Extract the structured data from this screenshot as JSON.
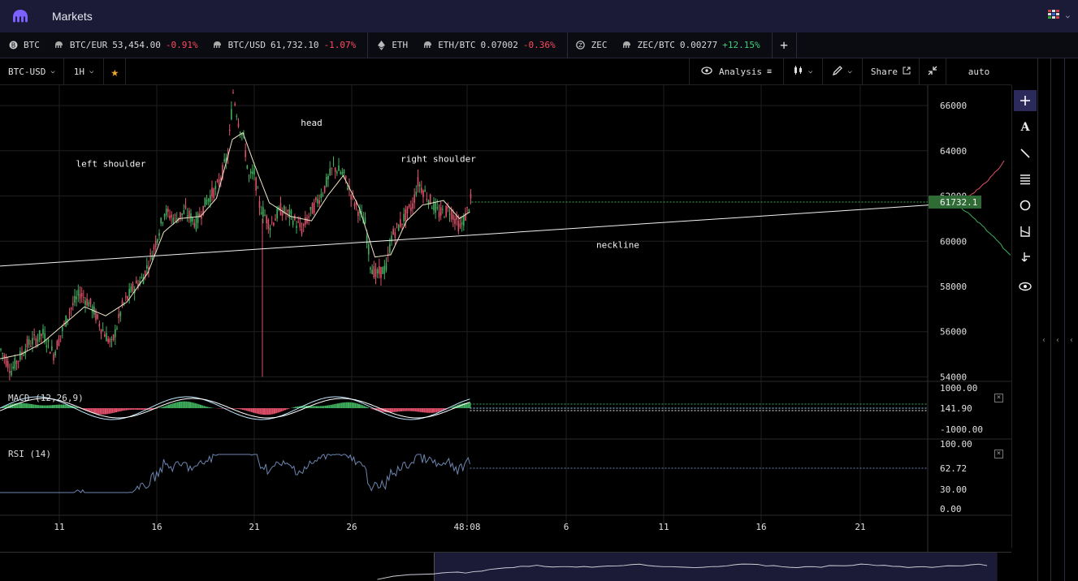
{
  "app": {
    "title": "Markets"
  },
  "tickers": [
    {
      "items": [
        {
          "icon": "bitcoin-icon",
          "symbol": "BTC",
          "price": "",
          "change": "",
          "dir": ""
        },
        {
          "icon": "kraken-icon",
          "symbol": "BTC/EUR",
          "price": "53,454.00",
          "change": "-0.91%",
          "dir": "neg"
        },
        {
          "icon": "kraken-icon",
          "symbol": "BTC/USD",
          "price": "61,732.10",
          "change": "-1.07%",
          "dir": "neg"
        }
      ]
    },
    {
      "items": [
        {
          "icon": "ethereum-icon",
          "symbol": "ETH",
          "price": "",
          "change": "",
          "dir": ""
        },
        {
          "icon": "kraken-icon",
          "symbol": "ETH/BTC",
          "price": "0.07002",
          "change": "-0.36%",
          "dir": "neg"
        }
      ]
    },
    {
      "items": [
        {
          "icon": "zcash-icon",
          "symbol": "ZEC",
          "price": "",
          "change": "",
          "dir": ""
        },
        {
          "icon": "kraken-icon",
          "symbol": "ZEC/BTC",
          "price": "0.00277",
          "change": "+12.15%",
          "dir": "pos"
        }
      ]
    }
  ],
  "toolbar": {
    "pair": "BTC-USD",
    "interval": "1H",
    "analysis_label": "Analysis",
    "share_label": "Share",
    "scale_mode": "auto"
  },
  "chart_data": [
    {
      "type": "candlestick",
      "title": "BTC-USD",
      "xlabel": "",
      "ylabel": "",
      "x_ticks": [
        "11",
        "16",
        "21",
        "26",
        "48:08",
        "6",
        "11",
        "16",
        "21"
      ],
      "y_ticks": [
        66000,
        64000,
        62000,
        60000,
        58000,
        56000,
        54000
      ],
      "ylim": [
        53800,
        66900
      ],
      "last_price": "61732.1",
      "price_path": [
        [
          0,
          55200
        ],
        [
          2,
          54300
        ],
        [
          5,
          55400
        ],
        [
          8,
          55900
        ],
        [
          10,
          55000
        ],
        [
          13,
          56900
        ],
        [
          15,
          57700
        ],
        [
          17,
          57200
        ],
        [
          19,
          56200
        ],
        [
          21,
          55400
        ],
        [
          23,
          57100
        ],
        [
          25,
          57900
        ],
        [
          27,
          58400
        ],
        [
          29,
          59700
        ],
        [
          31,
          61300
        ],
        [
          33,
          61000
        ],
        [
          35,
          61300
        ],
        [
          37,
          60800
        ],
        [
          39,
          61800
        ],
        [
          41,
          62400
        ],
        [
          43,
          63800
        ],
        [
          44,
          66600
        ],
        [
          45,
          65300
        ],
        [
          46,
          64500
        ],
        [
          47,
          62800
        ],
        [
          48,
          63000
        ],
        [
          49,
          61600
        ],
        [
          51,
          60700
        ],
        [
          53,
          61400
        ],
        [
          55,
          61100
        ],
        [
          57,
          60500
        ],
        [
          59,
          61400
        ],
        [
          61,
          62200
        ],
        [
          63,
          63300
        ],
        [
          65,
          62900
        ],
        [
          67,
          61700
        ],
        [
          69,
          60800
        ],
        [
          70,
          59000
        ],
        [
          71,
          58500
        ],
        [
          73,
          58800
        ],
        [
          74,
          60200
        ],
        [
          76,
          60900
        ],
        [
          78,
          61600
        ],
        [
          79,
          62600
        ],
        [
          81,
          61900
        ],
        [
          83,
          61200
        ],
        [
          85,
          61400
        ],
        [
          87,
          60600
        ],
        [
          88,
          61100
        ],
        [
          89,
          61800
        ]
      ],
      "ma_path": [
        [
          0,
          54800
        ],
        [
          4,
          55000
        ],
        [
          8,
          55500
        ],
        [
          12,
          56300
        ],
        [
          16,
          57100
        ],
        [
          20,
          56700
        ],
        [
          24,
          57300
        ],
        [
          28,
          58600
        ],
        [
          31,
          60400
        ],
        [
          34,
          61000
        ],
        [
          38,
          61100
        ],
        [
          41,
          61900
        ],
        [
          44,
          64500
        ],
        [
          46,
          64800
        ],
        [
          48,
          63500
        ],
        [
          51,
          61700
        ],
        [
          55,
          61100
        ],
        [
          59,
          60900
        ],
        [
          62,
          62000
        ],
        [
          65,
          62900
        ],
        [
          68,
          61500
        ],
        [
          71,
          59300
        ],
        [
          74,
          59400
        ],
        [
          77,
          60900
        ],
        [
          80,
          61600
        ],
        [
          84,
          61800
        ],
        [
          87,
          61000
        ],
        [
          89,
          61300
        ]
      ],
      "spike_low": {
        "x": 50,
        "y": 54000
      },
      "annotations": [
        {
          "text": "left shoulder",
          "x": 21,
          "y": 63300
        },
        {
          "text": "head",
          "x": 59,
          "y": 65100
        },
        {
          "text": "right shoulder",
          "x": 83,
          "y": 63500
        },
        {
          "text": "neckline",
          "x": 117,
          "y": 59700
        }
      ],
      "neckline": {
        "x1": 0,
        "y1": 58900,
        "x2": 176,
        "y2": 61600
      },
      "depth": {
        "bids_label": "",
        "asks_label": ""
      }
    },
    {
      "type": "line",
      "title": "MACD (12,26,9)",
      "y_ticks": [
        "1000.00",
        "141.90",
        "-1000.00"
      ],
      "last_value": "141.90"
    },
    {
      "type": "line",
      "title": "RSI (14)",
      "y_ticks": [
        "100.00",
        "62.72",
        "30.00",
        "0.00"
      ],
      "last_value": "62.72"
    }
  ],
  "right_tools": [
    "crosshair-icon",
    "text-icon",
    "trendline-icon",
    "fib-icon",
    "circle-icon",
    "measure-icon",
    "move-icon",
    "eye-icon"
  ]
}
